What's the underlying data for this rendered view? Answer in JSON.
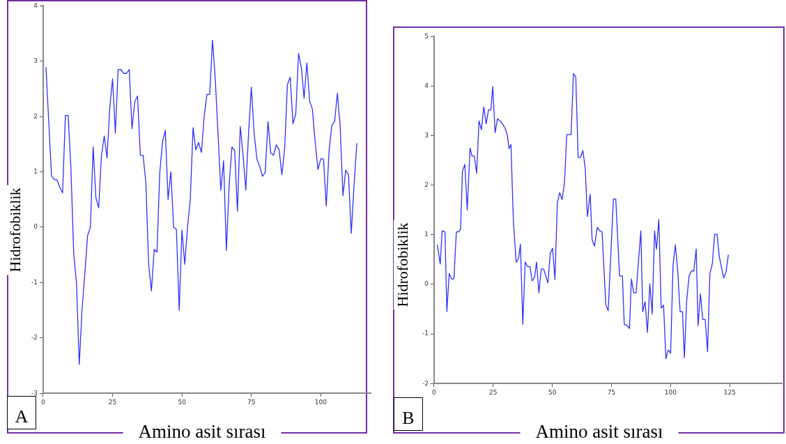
{
  "chart_data": [
    {
      "type": "line",
      "xlabel": "Amino asit sırası",
      "ylabel": "Hidrofobiklik",
      "annotations": [
        "A"
      ],
      "xlim": [
        0,
        118
      ],
      "xticks": [
        0,
        25,
        50,
        75,
        100
      ],
      "ylim": [
        -3,
        4
      ],
      "yticks": [
        -3,
        -2,
        -1,
        0,
        1,
        2,
        3,
        4
      ],
      "grid": false,
      "marker": "none",
      "series": [
        {
          "color": "#2f2fff",
          "x": [
            1,
            3,
            4,
            5,
            6,
            7,
            8,
            9,
            10,
            11,
            12,
            13,
            14,
            15,
            16,
            17,
            18,
            19,
            20,
            21,
            22,
            23,
            24,
            25,
            26,
            27,
            28,
            29,
            30,
            31,
            32,
            33,
            34,
            35,
            36,
            37,
            38,
            39,
            40,
            41,
            42,
            43,
            44,
            45,
            46,
            47,
            48,
            49,
            50,
            51,
            52,
            53,
            54,
            55,
            56,
            57,
            58,
            59,
            60,
            61,
            62,
            64,
            65,
            66,
            67,
            68,
            69,
            70,
            71,
            72,
            73,
            74,
            75,
            76,
            77,
            78,
            79,
            80,
            81,
            82,
            83,
            84,
            85,
            86,
            87,
            88,
            89,
            90,
            91,
            92,
            93,
            94,
            95,
            96,
            97,
            98,
            99,
            100,
            101,
            102,
            103,
            104,
            105,
            106,
            107,
            108,
            109,
            110,
            111,
            112,
            113
          ],
          "values": [
            2.89,
            0.93,
            0.86,
            0.85,
            0.72,
            0.62,
            2.02,
            2.02,
            1.06,
            -0.48,
            -1.01,
            -2.48,
            -1.49,
            -0.84,
            -0.15,
            0.0,
            1.45,
            0.53,
            0.35,
            1.3,
            1.65,
            1.25,
            2.17,
            2.68,
            1.7,
            2.85,
            2.85,
            2.78,
            2.78,
            2.85,
            1.78,
            2.27,
            2.37,
            1.3,
            1.3,
            0.8,
            -0.67,
            -1.15,
            -0.4,
            -0.45,
            0.98,
            1.55,
            1.75,
            0.5,
            1.0,
            0.0,
            -0.04,
            -1.5,
            -0.05,
            -0.67,
            0.0,
            0.5,
            1.8,
            1.4,
            1.53,
            1.35,
            2.0,
            2.4,
            2.4,
            3.38,
            2.68,
            0.67,
            1.2,
            -0.42,
            0.76,
            1.45,
            1.38,
            0.29,
            1.82,
            1.31,
            0.67,
            1.7,
            2.53,
            1.7,
            1.23,
            1.1,
            0.92,
            0.99,
            1.91,
            1.34,
            1.3,
            1.49,
            1.4,
            0.95,
            1.42,
            2.58,
            2.71,
            1.87,
            2.05,
            3.14,
            2.89,
            2.33,
            2.97,
            2.28,
            2.13,
            1.53,
            1.04,
            1.24,
            1.23,
            0.38,
            1.38,
            1.84,
            1.91,
            2.42,
            1.82,
            0.57,
            1.03,
            0.95,
            -0.11,
            0.76,
            1.52
          ]
        }
      ]
    },
    {
      "type": "line",
      "xlabel": "Amino asit sırası",
      "ylabel": "Hidrofobiklik",
      "annotations": [
        "B"
      ],
      "xlim": [
        0,
        147
      ],
      "xticks": [
        0,
        25,
        50,
        75,
        100,
        125
      ],
      "ylim": [
        -2,
        5
      ],
      "yticks": [
        -2,
        -1,
        0,
        1,
        2,
        3,
        4,
        5
      ],
      "grid": false,
      "marker": "none",
      "series": [
        {
          "color": "#2f2fff",
          "x": [
            1.4,
            2.6,
            3.4,
            4.6,
            5.4,
            6.4,
            7.4,
            8.4,
            9.4,
            10.4,
            11.2,
            12,
            13,
            14,
            15.2,
            16,
            17,
            18,
            19,
            20,
            21,
            22,
            23,
            24,
            24.8,
            25.8,
            26.8,
            27.9,
            28.9,
            29.9,
            30.9,
            31.7,
            32.5,
            33.5,
            34.7,
            35.7,
            36.5,
            37.5,
            38.5,
            39.5,
            40.5,
            41.5,
            42.5,
            43.3,
            44.3,
            45.3,
            46.3,
            48.1,
            49.1,
            50.1,
            51.1,
            52.1,
            53.1,
            54.1,
            55.1,
            56.1,
            57.9,
            58.9,
            59.9,
            60.9,
            61.9,
            62.9,
            63.9,
            64.8,
            66,
            66.8,
            67.8,
            69,
            70,
            71,
            72.6,
            73.6,
            75.8,
            76.8,
            78.4,
            79.6,
            80.4,
            81.4,
            82.6,
            83.4,
            84.4,
            85.4,
            87.4,
            88.2,
            89.2,
            90.2,
            91.2,
            92.2,
            93.2,
            94,
            95,
            96,
            97,
            98,
            99,
            100,
            101,
            102,
            103,
            104,
            105,
            105.8,
            106.8,
            107.8,
            108.8,
            109.8,
            110.8,
            111.6,
            112.6,
            113.6,
            114.6,
            115.6,
            116.6,
            117.6,
            118.6,
            119.6,
            120.6,
            122.4,
            123.4,
            124.4
          ],
          "values": [
            0.8,
            0.41,
            1.08,
            1.06,
            -0.55,
            0.22,
            0.11,
            0.11,
            1.06,
            1.06,
            1.12,
            2.28,
            2.42,
            1.5,
            2.75,
            2.59,
            2.59,
            2.24,
            3.3,
            3.12,
            3.58,
            3.24,
            3.52,
            3.52,
            3.99,
            3.06,
            3.34,
            3.3,
            3.24,
            3.16,
            3.02,
            2.74,
            2.82,
            1.29,
            0.45,
            0.52,
            0.81,
            -0.81,
            0.45,
            0.36,
            0.36,
            0.07,
            0.15,
            0.45,
            -0.17,
            0.31,
            0.31,
            0.03,
            0.62,
            0.73,
            0.1,
            1.64,
            1.85,
            1.71,
            2.04,
            3.02,
            3.02,
            4.25,
            4.18,
            2.56,
            2.56,
            2.7,
            2.34,
            1.37,
            1.82,
            0.9,
            0.77,
            1.15,
            1.08,
            1.06,
            -0.41,
            -0.53,
            1.72,
            1.72,
            0.17,
            0.17,
            -0.81,
            -0.82,
            -0.89,
            0.11,
            -0.17,
            -0.17,
            1.08,
            -0.55,
            -0.35,
            -0.97,
            0.01,
            -0.6,
            1.08,
            0.71,
            1.31,
            -0.48,
            -0.42,
            -1.5,
            -1.32,
            -1.39,
            0.38,
            0.8,
            0.27,
            -0.55,
            -0.55,
            -1.48,
            -0.32,
            0.17,
            0.27,
            0.27,
            0.71,
            -0.83,
            -0.19,
            -0.71,
            -0.71,
            -1.36,
            0.22,
            0.41,
            1.01,
            1.01,
            0.55,
            0.13,
            0.24,
            0.6
          ]
        }
      ]
    }
  ]
}
